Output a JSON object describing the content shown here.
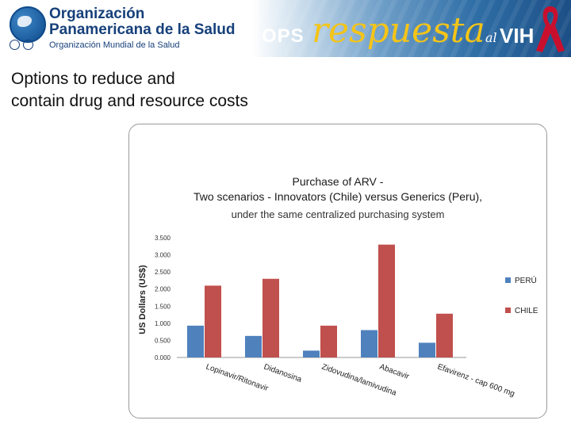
{
  "header": {
    "org_line1": "Organización",
    "org_line2": "Panamericana de la Salud",
    "org_sub": "Organización Mundial de la Salud",
    "ops": "OPS",
    "respuesta": "respuesta",
    "al": "al",
    "vih": "VIH",
    "colors": {
      "navy": "#16407a",
      "gold": "#f4c418",
      "ribbon": "#c8102e"
    }
  },
  "slide": {
    "title_line1": "Options to reduce and",
    "title_line2": "contain drug and resource costs"
  },
  "chart_data": {
    "type": "bar",
    "title_lines": [
      "Purchase of ARV -",
      "Two scenarios - Innovators (Chile) versus Generics (Peru),",
      "under the same centralized purchasing system"
    ],
    "xlabel": "",
    "ylabel": "US Dollars (US$)",
    "ylim": [
      0,
      3.5
    ],
    "yticks": [
      "0.000",
      "0.500",
      "1.000",
      "1.500",
      "2.000",
      "2.500",
      "3.000",
      "3.500"
    ],
    "categories": [
      "Lopinavir/Ritonavir",
      "Didanosina",
      "Zidovudina/lamivudina",
      "Abacavir",
      "Efavirenz - cap 600 mg"
    ],
    "series": [
      {
        "name": "PERÚ",
        "color": "#4f81bd",
        "values": [
          0.93,
          0.63,
          0.2,
          0.8,
          0.43
        ]
      },
      {
        "name": "CHILE",
        "color": "#c0504d",
        "values": [
          2.1,
          2.3,
          0.93,
          3.3,
          1.28
        ]
      }
    ],
    "legend": "right",
    "grid": false
  }
}
